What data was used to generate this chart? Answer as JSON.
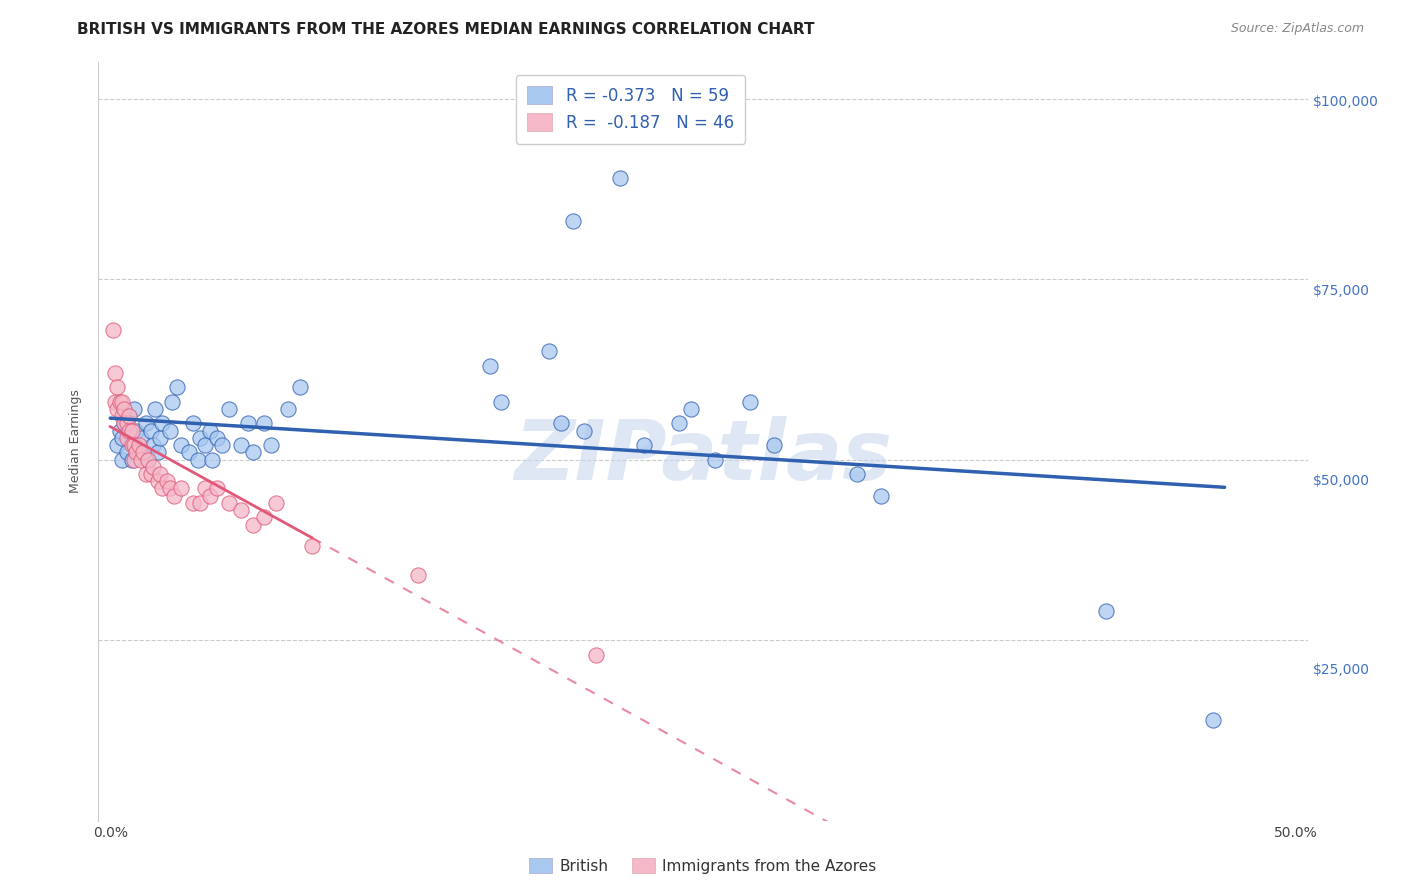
{
  "title": "BRITISH VS IMMIGRANTS FROM THE AZORES MEDIAN EARNINGS CORRELATION CHART",
  "source": "Source: ZipAtlas.com",
  "ylabel": "Median Earnings",
  "watermark": "ZIPatlas",
  "xlim": [
    -0.005,
    0.505
  ],
  "ylim": [
    5000,
    105000
  ],
  "color_british": "#A8C8F0",
  "color_azores": "#F5B8C8",
  "color_british_line": "#3060B0",
  "color_azores_line": "#E05878",
  "background_color": "#FFFFFF",
  "grid_color": "#CCCCCC",
  "british_x": [
    0.003,
    0.004,
    0.005,
    0.005,
    0.006,
    0.007,
    0.008,
    0.009,
    0.01,
    0.01,
    0.011,
    0.012,
    0.013,
    0.015,
    0.016,
    0.017,
    0.018,
    0.019,
    0.02,
    0.021,
    0.022,
    0.025,
    0.026,
    0.028,
    0.03,
    0.033,
    0.035,
    0.037,
    0.038,
    0.04,
    0.042,
    0.043,
    0.045,
    0.047,
    0.05,
    0.055,
    0.058,
    0.06,
    0.065,
    0.068,
    0.075,
    0.08,
    0.16,
    0.165,
    0.185,
    0.19,
    0.195,
    0.2,
    0.215,
    0.225,
    0.24,
    0.245,
    0.255,
    0.27,
    0.28,
    0.315,
    0.325,
    0.42,
    0.465
  ],
  "british_y": [
    52000,
    54000,
    50000,
    53000,
    55000,
    51000,
    56000,
    50000,
    52000,
    57000,
    54000,
    51000,
    53000,
    55000,
    50000,
    54000,
    52000,
    57000,
    51000,
    53000,
    55000,
    54000,
    58000,
    60000,
    52000,
    51000,
    55000,
    50000,
    53000,
    52000,
    54000,
    50000,
    53000,
    52000,
    57000,
    52000,
    55000,
    51000,
    55000,
    52000,
    57000,
    60000,
    63000,
    58000,
    65000,
    55000,
    83000,
    54000,
    89000,
    52000,
    55000,
    57000,
    50000,
    58000,
    52000,
    48000,
    45000,
    29000,
    14000
  ],
  "azores_x": [
    0.001,
    0.002,
    0.002,
    0.003,
    0.003,
    0.004,
    0.005,
    0.005,
    0.006,
    0.006,
    0.007,
    0.007,
    0.008,
    0.008,
    0.009,
    0.009,
    0.01,
    0.01,
    0.011,
    0.012,
    0.013,
    0.014,
    0.015,
    0.016,
    0.017,
    0.018,
    0.02,
    0.021,
    0.022,
    0.024,
    0.025,
    0.027,
    0.03,
    0.035,
    0.038,
    0.04,
    0.042,
    0.045,
    0.05,
    0.055,
    0.06,
    0.065,
    0.07,
    0.085,
    0.13,
    0.205
  ],
  "azores_y": [
    68000,
    62000,
    58000,
    60000,
    57000,
    58000,
    56000,
    58000,
    57000,
    55000,
    55000,
    53000,
    56000,
    54000,
    54000,
    52000,
    52000,
    50000,
    51000,
    52000,
    50000,
    51000,
    48000,
    50000,
    48000,
    49000,
    47000,
    48000,
    46000,
    47000,
    46000,
    45000,
    46000,
    44000,
    44000,
    46000,
    45000,
    46000,
    44000,
    43000,
    41000,
    42000,
    44000,
    38000,
    34000,
    23000
  ],
  "title_fontsize": 11,
  "axis_label_fontsize": 9,
  "tick_fontsize": 10,
  "watermark_fontsize": 60,
  "watermark_color": "#C8D8EC",
  "watermark_alpha": 0.6
}
